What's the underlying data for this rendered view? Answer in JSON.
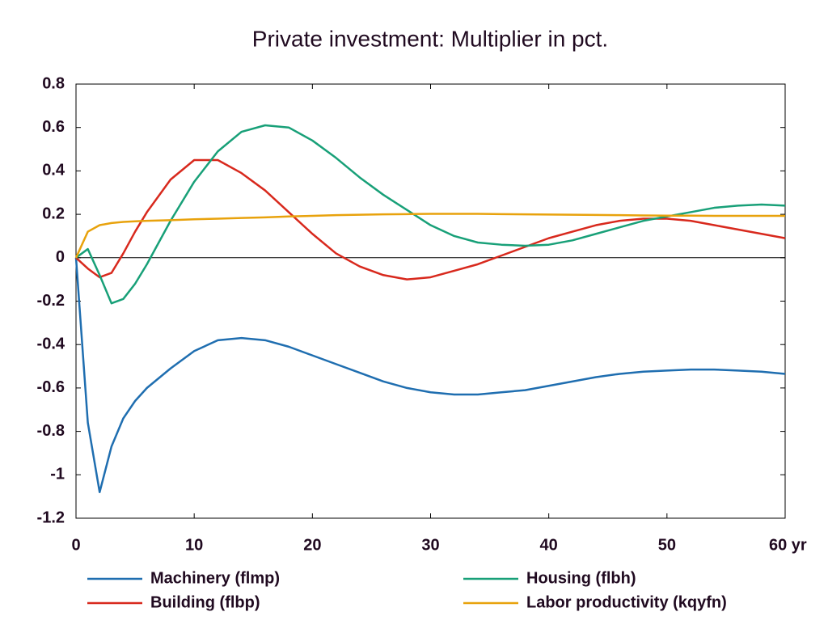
{
  "chart_data": {
    "type": "line",
    "title": "Private investment: Multiplier in pct.",
    "x": [
      0,
      1,
      2,
      3,
      4,
      5,
      6,
      8,
      10,
      12,
      14,
      16,
      18,
      20,
      22,
      24,
      26,
      28,
      30,
      32,
      34,
      36,
      38,
      40,
      42,
      44,
      46,
      48,
      50,
      52,
      54,
      56,
      58,
      60
    ],
    "xlim": [
      0,
      60
    ],
    "xticks": [
      0,
      10,
      20,
      30,
      40,
      50,
      {
        "value": 60,
        "label": "60 yr"
      }
    ],
    "ylim": [
      -1.2,
      0.8
    ],
    "yticks": [
      0.8,
      0.6,
      0.4,
      0.2,
      0,
      -0.2,
      -0.4,
      -0.6,
      -0.8,
      -1,
      -1.2
    ],
    "series": [
      {
        "name": "Machinery (flmp)",
        "color": "#1f6eb0",
        "values": [
          0,
          -0.76,
          -1.08,
          -0.87,
          -0.74,
          -0.66,
          -0.6,
          -0.51,
          -0.43,
          -0.38,
          -0.37,
          -0.38,
          -0.41,
          -0.45,
          -0.49,
          -0.53,
          -0.57,
          -0.6,
          -0.62,
          -0.63,
          -0.63,
          -0.62,
          -0.61,
          -0.59,
          -0.57,
          -0.55,
          -0.535,
          -0.525,
          -0.52,
          -0.515,
          -0.515,
          -0.52,
          -0.525,
          -0.535
        ]
      },
      {
        "name": "Building (flbp)",
        "color": "#d8291d",
        "values": [
          0,
          -0.05,
          -0.09,
          -0.07,
          0.02,
          0.12,
          0.21,
          0.36,
          0.45,
          0.45,
          0.39,
          0.31,
          0.21,
          0.11,
          0.02,
          -0.04,
          -0.08,
          -0.1,
          -0.09,
          -0.06,
          -0.03,
          0.01,
          0.05,
          0.09,
          0.12,
          0.15,
          0.17,
          0.18,
          0.18,
          0.17,
          0.15,
          0.13,
          0.11,
          0.09
        ]
      },
      {
        "name": "Housing (flbh)",
        "color": "#18a078",
        "values": [
          0,
          0.04,
          -0.08,
          -0.21,
          -0.19,
          -0.12,
          -0.03,
          0.17,
          0.35,
          0.49,
          0.58,
          0.61,
          0.6,
          0.54,
          0.46,
          0.37,
          0.29,
          0.22,
          0.15,
          0.1,
          0.07,
          0.06,
          0.055,
          0.06,
          0.08,
          0.11,
          0.14,
          0.17,
          0.19,
          0.21,
          0.23,
          0.24,
          0.245,
          0.24
        ]
      },
      {
        "name": "Labor productivity (kqyfn)",
        "color": "#e8a20c",
        "values": [
          0,
          0.12,
          0.15,
          0.16,
          0.165,
          0.168,
          0.17,
          0.173,
          0.177,
          0.18,
          0.183,
          0.186,
          0.19,
          0.193,
          0.196,
          0.198,
          0.2,
          0.201,
          0.202,
          0.202,
          0.202,
          0.201,
          0.2,
          0.199,
          0.198,
          0.197,
          0.196,
          0.195,
          0.194,
          0.194,
          0.193,
          0.193,
          0.193,
          0.193
        ]
      }
    ]
  }
}
